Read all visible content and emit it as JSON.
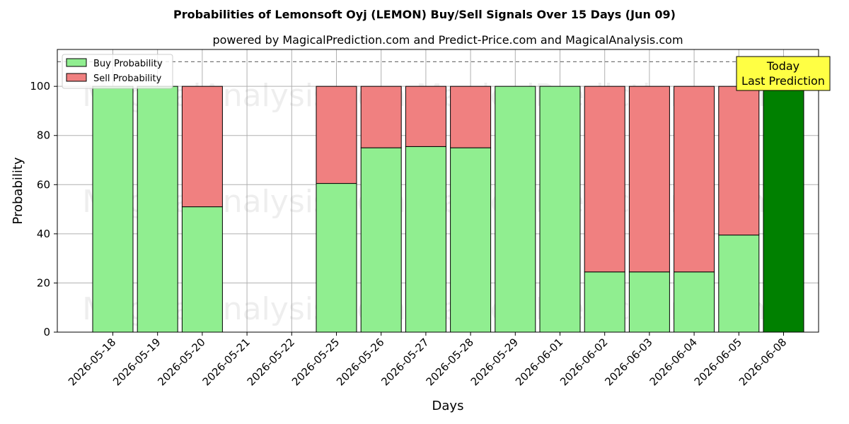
{
  "chart_data": {
    "type": "bar",
    "stacked": true,
    "title": "Probabilities of Lemonsoft Oyj (LEMON) Buy/Sell Signals Over 15 Days (Jun 09)",
    "subtitle": "powered by MagicalPrediction.com and Predict-Price.com and MagicalAnalysis.com",
    "xlabel": "Days",
    "ylabel": "Probability",
    "ylim": [
      0,
      115
    ],
    "yticks": [
      0,
      20,
      40,
      60,
      80,
      100
    ],
    "grid": true,
    "reference_line": 110,
    "legend_position": "top-left",
    "categories": [
      "2026-05-18",
      "2026-05-19",
      "2026-05-20",
      "2026-05-21",
      "2026-05-22",
      "2026-05-25",
      "2026-05-26",
      "2026-05-27",
      "2026-05-28",
      "2026-05-29",
      "2026-06-01",
      "2026-06-02",
      "2026-06-03",
      "2026-06-04",
      "2026-06-05",
      "2026-06-08"
    ],
    "series": [
      {
        "name": "Buy Probability",
        "color": "#90ee90",
        "values": [
          100,
          100,
          51,
          0,
          0,
          60.5,
          75,
          75.5,
          75,
          100,
          100,
          24.5,
          24.5,
          24.5,
          39.5,
          100
        ]
      },
      {
        "name": "Sell Probability",
        "color": "#f08080",
        "values": [
          0,
          0,
          49,
          0,
          0,
          39.5,
          25,
          24.5,
          25,
          0,
          0,
          75.5,
          75.5,
          75.5,
          60.5,
          0
        ]
      }
    ],
    "highlight": {
      "index": 15,
      "color": "#008000",
      "label_lines": [
        "Today",
        "Last Prediction"
      ],
      "box_color": "#ffff44"
    },
    "watermarks": [
      "MagicalAnalysis.com",
      "MagicalPrediction.com"
    ]
  }
}
